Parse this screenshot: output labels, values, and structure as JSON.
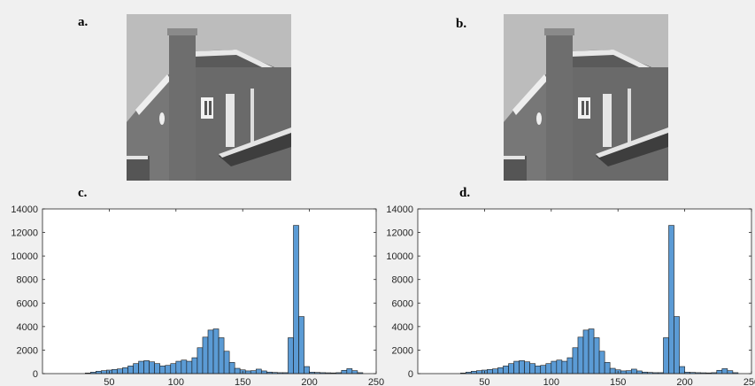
{
  "labels": {
    "a": "a.",
    "b": "b.",
    "c": "c.",
    "d": "d."
  },
  "images": [
    {
      "panel": "a",
      "description_icon": "house-photo-icon"
    },
    {
      "panel": "b",
      "description_icon": "house-photo-icon"
    }
  ],
  "colors": {
    "bar_fill": "#5b9bd5",
    "bar_stroke": "#1a1a1a",
    "axes_bg": "#ffffff",
    "figure_bg": "#f0f0f0"
  },
  "chart_data": [
    {
      "type": "bar",
      "panel": "c",
      "title": "",
      "xlabel": "",
      "ylabel": "",
      "xlim": [
        0,
        250
      ],
      "ylim": [
        0,
        14000
      ],
      "xticks": [
        50,
        100,
        150,
        200,
        250
      ],
      "yticks": [
        0,
        2000,
        4000,
        6000,
        8000,
        10000,
        12000,
        14000
      ],
      "bin_width": 4,
      "x": [
        32,
        36,
        40,
        44,
        48,
        52,
        56,
        60,
        64,
        68,
        72,
        76,
        80,
        84,
        88,
        92,
        96,
        100,
        104,
        108,
        112,
        116,
        120,
        124,
        128,
        132,
        136,
        140,
        144,
        148,
        152,
        156,
        160,
        164,
        168,
        172,
        176,
        180,
        184,
        188,
        192,
        196,
        200,
        204,
        208,
        212,
        216,
        220,
        224,
        228,
        232,
        236
      ],
      "values": [
        50,
        120,
        200,
        250,
        300,
        350,
        400,
        500,
        650,
        850,
        1050,
        1100,
        1000,
        850,
        650,
        700,
        850,
        1050,
        1150,
        1050,
        1350,
        2200,
        3100,
        3700,
        3800,
        3050,
        1900,
        950,
        450,
        320,
        230,
        250,
        380,
        230,
        130,
        100,
        80,
        80,
        3050,
        12600,
        4850,
        600,
        120,
        100,
        80,
        70,
        60,
        80,
        280,
        420,
        250,
        80
      ]
    },
    {
      "type": "bar",
      "panel": "d",
      "title": "",
      "xlabel": "",
      "ylabel": "",
      "xlim": [
        0,
        250
      ],
      "ylim": [
        0,
        14000
      ],
      "xticks": [
        50,
        100,
        150,
        200,
        250
      ],
      "yticks": [
        0,
        2000,
        4000,
        6000,
        8000,
        10000,
        12000,
        14000
      ],
      "bin_width": 4,
      "x": [
        32,
        36,
        40,
        44,
        48,
        52,
        56,
        60,
        64,
        68,
        72,
        76,
        80,
        84,
        88,
        92,
        96,
        100,
        104,
        108,
        112,
        116,
        120,
        124,
        128,
        132,
        136,
        140,
        144,
        148,
        152,
        156,
        160,
        164,
        168,
        172,
        176,
        180,
        184,
        188,
        192,
        196,
        200,
        204,
        208,
        212,
        216,
        220,
        224,
        228,
        232,
        236
      ],
      "values": [
        50,
        120,
        200,
        250,
        300,
        350,
        400,
        500,
        650,
        850,
        1050,
        1100,
        1000,
        850,
        650,
        700,
        850,
        1050,
        1150,
        1050,
        1350,
        2200,
        3100,
        3700,
        3800,
        3050,
        1900,
        950,
        450,
        320,
        230,
        250,
        380,
        230,
        130,
        100,
        80,
        80,
        3050,
        12600,
        4850,
        600,
        120,
        100,
        80,
        70,
        60,
        80,
        280,
        420,
        250,
        80
      ]
    }
  ]
}
